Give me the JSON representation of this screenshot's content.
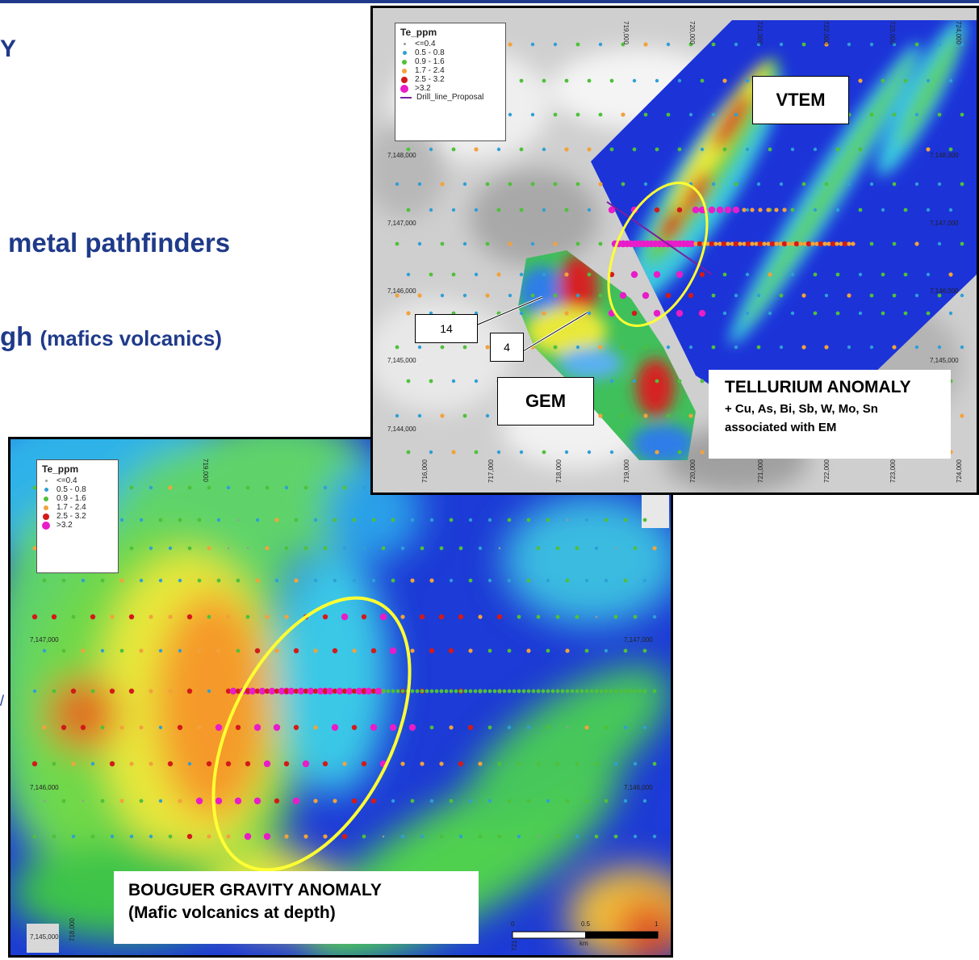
{
  "slide": {
    "heading_fragment": "Y",
    "bullet_pathfinders": "metal pathfinders",
    "bullet_high": "gh",
    "bullet_high_note": "(mafics volcanics)",
    "edge_fragment": "/"
  },
  "legend": {
    "title": "Te_ppm",
    "items": [
      {
        "label": "<=0.4",
        "color": "#9a9a9a"
      },
      {
        "label": "0.5 - 0.8",
        "color": "#2e9fd6"
      },
      {
        "label": "0.9 - 1.6",
        "color": "#4fc03a"
      },
      {
        "label": "1.7 - 2.4",
        "color": "#f2a23c"
      },
      {
        "label": "2.5 - 3.2",
        "color": "#d21a1a"
      },
      {
        "label": ">3.2",
        "color": "#e81cc8"
      }
    ],
    "drill_line_label": "Drill_line_Proposal",
    "drill_line_color": "#7a1fa2"
  },
  "top_map": {
    "vtem_label": "VTEM",
    "gem_label": "GEM",
    "callout_14": "14",
    "callout_4": "4",
    "anomaly_title": "TELLURIUM ANOMALY",
    "anomaly_line2": "+ Cu, As, Bi, Sb, W, Mo, Sn",
    "anomaly_line3": "associated with EM",
    "y_labels": [
      "7,148,000",
      "7,147,000",
      "7,146,000",
      "7,145,000",
      "7,144,000"
    ],
    "y_labels_right": [
      "7,148,000",
      "7,147,000",
      "7,146,000",
      "7,145,000"
    ],
    "x_labels": [
      "716,000",
      "717,000",
      "718,000",
      "719,000",
      "720,000",
      "721,000",
      "722,000",
      "723,000",
      "724,000"
    ],
    "x_labels_top": [
      "719,000",
      "720,000",
      "721,000",
      "722,000",
      "723,000",
      "724,000"
    ]
  },
  "bottom_map": {
    "anomaly_title": "BOUGUER GRAVITY  ANOMALY",
    "anomaly_line2": "(Mafic volcanics at depth)",
    "y_labels": [
      "7,147,000",
      "7,146,000",
      "7,145,000"
    ],
    "y_labels_right": [
      "7,147,000",
      "7,146,000"
    ],
    "x_labels_top": [
      "719,000"
    ],
    "x_labels_bottom": [
      "718,000",
      "721"
    ],
    "scale_labels": [
      "0",
      "0.5",
      "1"
    ],
    "scale_unit": "km"
  }
}
